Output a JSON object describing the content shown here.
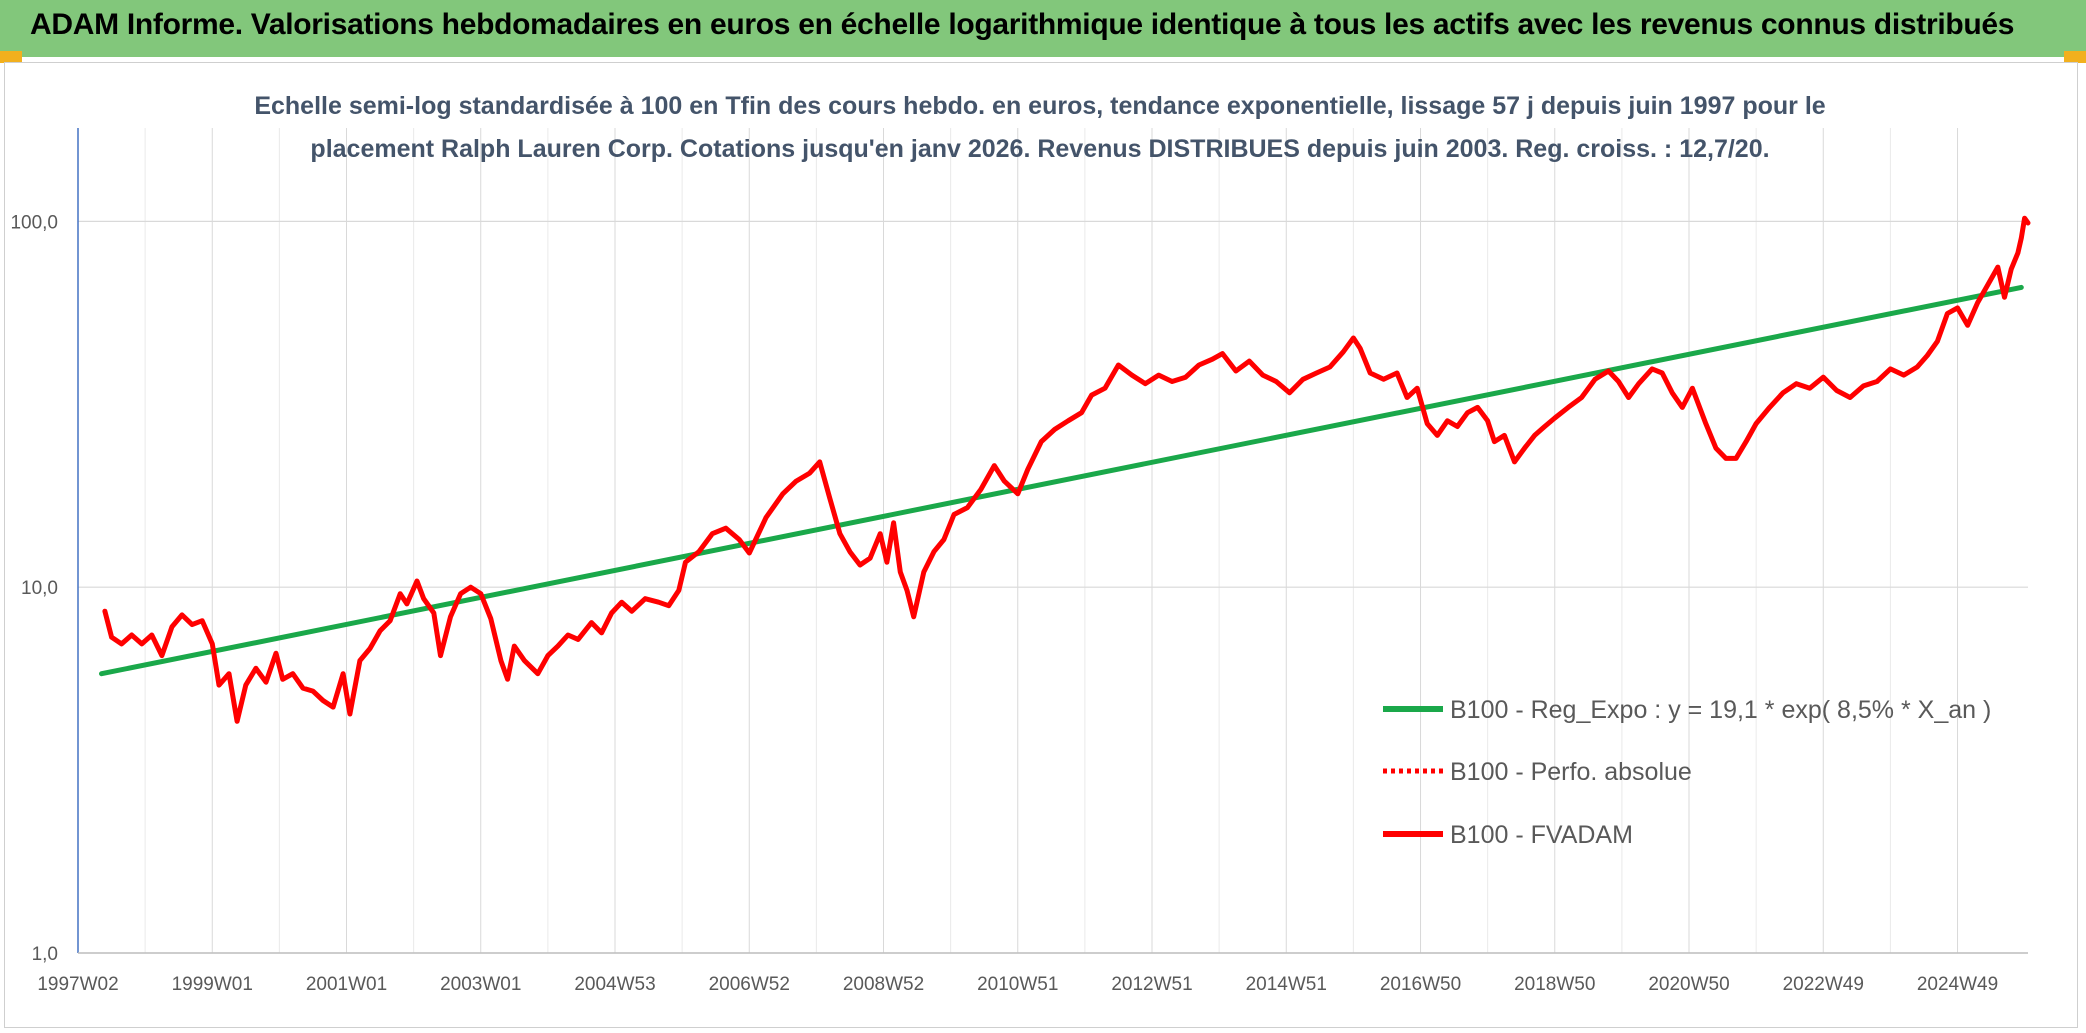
{
  "header": {
    "title": "ADAM Informe. Valorisations hebdomadaires en euros en échelle logarithmique identique à tous les actifs avec les revenus connus distribués"
  },
  "colors": {
    "header_bg": "#82c77b",
    "trend_line": "#1aa84a",
    "fvadam_line": "#ff0000",
    "grid": "#d9d9d9",
    "text": "#595959"
  },
  "chart_data": {
    "type": "line",
    "scale": "log",
    "title_lines": [
      "Echelle semi-log standardisée à 100 en Tfin des cours hebdo. en euros, tendance exponentielle, lissage 57 j depuis juin 1997 pour le",
      "placement Ralph Lauren Corp. Cotations jusqu'en janv 2026. Revenus DISTRIBUES depuis juin 2003. Reg. croiss. : 12,7/20."
    ],
    "xlabel": "",
    "ylabel": "",
    "x_range": [
      1997.05,
      2026.1
    ],
    "y_range": [
      1,
      180
    ],
    "y_ticks": [
      {
        "value": 1,
        "label": "1,0"
      },
      {
        "value": 10,
        "label": "10,0"
      },
      {
        "value": 100,
        "label": "100,0"
      }
    ],
    "x_ticks": [
      {
        "value": 1997.05,
        "label": "1997W02"
      },
      {
        "value": 1999.05,
        "label": "1999W01"
      },
      {
        "value": 2001.05,
        "label": "2001W01"
      },
      {
        "value": 2003.05,
        "label": "2003W01"
      },
      {
        "value": 2005.05,
        "label": "2004W53"
      },
      {
        "value": 2007.05,
        "label": "2006W52"
      },
      {
        "value": 2009.05,
        "label": "2008W52"
      },
      {
        "value": 2011.05,
        "label": "2010W51"
      },
      {
        "value": 2013.05,
        "label": "2012W51"
      },
      {
        "value": 2015.05,
        "label": "2014W51"
      },
      {
        "value": 2017.05,
        "label": "2016W50"
      },
      {
        "value": 2019.05,
        "label": "2018W50"
      },
      {
        "value": 2021.05,
        "label": "2020W50"
      },
      {
        "value": 2023.05,
        "label": "2022W49"
      },
      {
        "value": 2025.05,
        "label": "2024W49"
      }
    ],
    "grid": true,
    "legend_position": "right",
    "series": [
      {
        "name": "B100 - Reg_Expo : y = 19,1 * exp( 8,5% *  X_an )",
        "style": "solid",
        "color": "#1aa84a",
        "points": [
          [
            1997.4,
            5.8
          ],
          [
            2026.0,
            66
          ]
        ]
      },
      {
        "name": "B100 - Perfo. absolue",
        "style": "dotted",
        "color": "#ff0000",
        "points": []
      },
      {
        "name": "B100 - FVADAM",
        "style": "solid",
        "color": "#ff0000",
        "points": [
          [
            1997.45,
            8.6
          ],
          [
            1997.55,
            7.3
          ],
          [
            1997.7,
            7.0
          ],
          [
            1997.85,
            7.4
          ],
          [
            1998.0,
            7.0
          ],
          [
            1998.15,
            7.4
          ],
          [
            1998.3,
            6.5
          ],
          [
            1998.45,
            7.8
          ],
          [
            1998.6,
            8.4
          ],
          [
            1998.75,
            7.9
          ],
          [
            1998.9,
            8.1
          ],
          [
            1999.05,
            7.0
          ],
          [
            1999.15,
            5.4
          ],
          [
            1999.3,
            5.8
          ],
          [
            1999.42,
            4.3
          ],
          [
            1999.55,
            5.4
          ],
          [
            1999.7,
            6.0
          ],
          [
            1999.85,
            5.5
          ],
          [
            2000.0,
            6.6
          ],
          [
            2000.1,
            5.6
          ],
          [
            2000.25,
            5.8
          ],
          [
            2000.4,
            5.3
          ],
          [
            2000.55,
            5.2
          ],
          [
            2000.7,
            4.9
          ],
          [
            2000.85,
            4.7
          ],
          [
            2001.0,
            5.8
          ],
          [
            2001.1,
            4.5
          ],
          [
            2001.25,
            6.3
          ],
          [
            2001.4,
            6.8
          ],
          [
            2001.55,
            7.6
          ],
          [
            2001.7,
            8.1
          ],
          [
            2001.85,
            9.6
          ],
          [
            2001.95,
            9.0
          ],
          [
            2002.1,
            10.4
          ],
          [
            2002.2,
            9.3
          ],
          [
            2002.35,
            8.5
          ],
          [
            2002.45,
            6.5
          ],
          [
            2002.6,
            8.3
          ],
          [
            2002.75,
            9.6
          ],
          [
            2002.9,
            10.0
          ],
          [
            2003.05,
            9.6
          ],
          [
            2003.2,
            8.2
          ],
          [
            2003.35,
            6.3
          ],
          [
            2003.45,
            5.6
          ],
          [
            2003.55,
            6.9
          ],
          [
            2003.7,
            6.3
          ],
          [
            2003.9,
            5.8
          ],
          [
            2004.05,
            6.5
          ],
          [
            2004.2,
            6.9
          ],
          [
            2004.35,
            7.4
          ],
          [
            2004.5,
            7.2
          ],
          [
            2004.7,
            8.0
          ],
          [
            2004.85,
            7.5
          ],
          [
            2005.0,
            8.5
          ],
          [
            2005.15,
            9.1
          ],
          [
            2005.3,
            8.6
          ],
          [
            2005.5,
            9.3
          ],
          [
            2005.7,
            9.1
          ],
          [
            2005.85,
            8.9
          ],
          [
            2006.0,
            9.8
          ],
          [
            2006.1,
            11.7
          ],
          [
            2006.3,
            12.5
          ],
          [
            2006.5,
            14.0
          ],
          [
            2006.7,
            14.5
          ],
          [
            2006.9,
            13.5
          ],
          [
            2007.05,
            12.4
          ],
          [
            2007.3,
            15.5
          ],
          [
            2007.55,
            18.0
          ],
          [
            2007.75,
            19.5
          ],
          [
            2007.95,
            20.5
          ],
          [
            2008.1,
            22.0
          ],
          [
            2008.25,
            17.5
          ],
          [
            2008.4,
            14.0
          ],
          [
            2008.55,
            12.5
          ],
          [
            2008.7,
            11.5
          ],
          [
            2008.85,
            12.0
          ],
          [
            2009.0,
            14.0
          ],
          [
            2009.1,
            11.7
          ],
          [
            2009.2,
            15.0
          ],
          [
            2009.3,
            11.0
          ],
          [
            2009.4,
            9.8
          ],
          [
            2009.5,
            8.3
          ],
          [
            2009.65,
            11.0
          ],
          [
            2009.8,
            12.5
          ],
          [
            2009.95,
            13.5
          ],
          [
            2010.1,
            15.8
          ],
          [
            2010.3,
            16.5
          ],
          [
            2010.5,
            18.5
          ],
          [
            2010.7,
            21.5
          ],
          [
            2010.85,
            19.5
          ],
          [
            2011.05,
            18.0
          ],
          [
            2011.2,
            21.0
          ],
          [
            2011.4,
            25.0
          ],
          [
            2011.6,
            27.0
          ],
          [
            2011.8,
            28.5
          ],
          [
            2012.0,
            30.0
          ],
          [
            2012.15,
            33.5
          ],
          [
            2012.35,
            35.0
          ],
          [
            2012.55,
            40.5
          ],
          [
            2012.75,
            38.0
          ],
          [
            2012.95,
            36.0
          ],
          [
            2013.15,
            38.0
          ],
          [
            2013.35,
            36.5
          ],
          [
            2013.55,
            37.5
          ],
          [
            2013.75,
            40.5
          ],
          [
            2013.95,
            42.0
          ],
          [
            2014.1,
            43.5
          ],
          [
            2014.3,
            39.0
          ],
          [
            2014.5,
            41.5
          ],
          [
            2014.7,
            38.0
          ],
          [
            2014.9,
            36.5
          ],
          [
            2015.1,
            34.0
          ],
          [
            2015.3,
            37.0
          ],
          [
            2015.5,
            38.5
          ],
          [
            2015.7,
            40.0
          ],
          [
            2015.9,
            44.0
          ],
          [
            2016.05,
            48.0
          ],
          [
            2016.15,
            45.0
          ],
          [
            2016.3,
            38.5
          ],
          [
            2016.5,
            37.0
          ],
          [
            2016.7,
            38.5
          ],
          [
            2016.85,
            33.0
          ],
          [
            2017.0,
            35.0
          ],
          [
            2017.15,
            28.0
          ],
          [
            2017.3,
            26.0
          ],
          [
            2017.45,
            28.5
          ],
          [
            2017.6,
            27.5
          ],
          [
            2017.75,
            30.0
          ],
          [
            2017.9,
            31.0
          ],
          [
            2018.05,
            28.5
          ],
          [
            2018.15,
            25.0
          ],
          [
            2018.3,
            26.0
          ],
          [
            2018.45,
            22.0
          ],
          [
            2018.6,
            24.0
          ],
          [
            2018.75,
            26.0
          ],
          [
            2018.9,
            27.5
          ],
          [
            2019.05,
            29.0
          ],
          [
            2019.25,
            31.0
          ],
          [
            2019.45,
            33.0
          ],
          [
            2019.65,
            37.0
          ],
          [
            2019.85,
            39.0
          ],
          [
            2020.0,
            36.5
          ],
          [
            2020.15,
            33.0
          ],
          [
            2020.3,
            36.0
          ],
          [
            2020.5,
            39.5
          ],
          [
            2020.65,
            38.5
          ],
          [
            2020.8,
            34.0
          ],
          [
            2020.95,
            31.0
          ],
          [
            2021.1,
            35.0
          ],
          [
            2021.3,
            28.0
          ],
          [
            2021.45,
            24.0
          ],
          [
            2021.6,
            22.5
          ],
          [
            2021.75,
            22.5
          ],
          [
            2021.9,
            25.0
          ],
          [
            2022.05,
            28.0
          ],
          [
            2022.25,
            31.0
          ],
          [
            2022.45,
            34.0
          ],
          [
            2022.65,
            36.0
          ],
          [
            2022.85,
            35.0
          ],
          [
            2023.05,
            37.5
          ],
          [
            2023.25,
            34.5
          ],
          [
            2023.45,
            33.0
          ],
          [
            2023.65,
            35.5
          ],
          [
            2023.85,
            36.5
          ],
          [
            2024.05,
            39.5
          ],
          [
            2024.25,
            38.0
          ],
          [
            2024.45,
            40.0
          ],
          [
            2024.6,
            43.0
          ],
          [
            2024.75,
            47.0
          ],
          [
            2024.9,
            56.0
          ],
          [
            2025.05,
            58.0
          ],
          [
            2025.2,
            52.0
          ],
          [
            2025.35,
            60.0
          ],
          [
            2025.5,
            67.0
          ],
          [
            2025.65,
            75.0
          ],
          [
            2025.75,
            62.0
          ],
          [
            2025.85,
            74.0
          ],
          [
            2025.95,
            82.0
          ],
          [
            2026.0,
            90.0
          ],
          [
            2026.05,
            102.0
          ],
          [
            2026.1,
            99.0
          ]
        ]
      }
    ]
  }
}
